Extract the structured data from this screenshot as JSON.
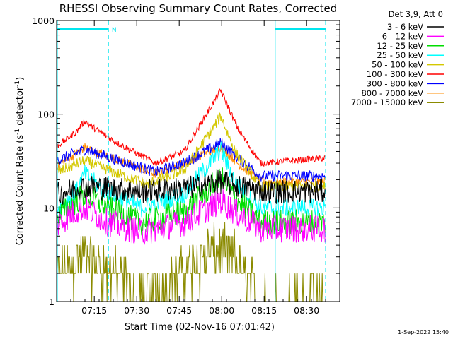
{
  "chart_data": {
    "type": "line",
    "title": "RHESSI Observing Summary Count Rates, Corrected",
    "xlabel": "Start Time (02-Nov-16 07:01:42)",
    "ylabel_main": "Corrected Count Rate (s",
    "ylabel_sup1": "-1",
    "ylabel_mid": " detector",
    "ylabel_sup2": "-1",
    "ylabel_end": ")",
    "ylog": true,
    "ylim": [
      1,
      1000
    ],
    "xlim_min": [
      0,
      100
    ],
    "x_ticks": [
      {
        "label": "07:15",
        "min": 13.3
      },
      {
        "label": "07:30",
        "min": 28.3
      },
      {
        "label": "07:45",
        "min": 43.3
      },
      {
        "label": "08:00",
        "min": 58.3
      },
      {
        "label": "08:15",
        "min": 73.3
      },
      {
        "label": "08:30",
        "min": 88.3
      }
    ],
    "y_ticks": [
      {
        "label": "1",
        "v": 1
      },
      {
        "label": "10",
        "v": 10
      },
      {
        "label": "100",
        "v": 100
      },
      {
        "label": "1000",
        "v": 1000
      }
    ],
    "legend_header": "Det 3,9, Att 0",
    "legend_placement": "top-right outside",
    "series": [
      {
        "name": "3 - 6 keV",
        "color": "#000000",
        "anchors": [
          [
            0,
            14
          ],
          [
            10,
            17
          ],
          [
            20,
            16
          ],
          [
            30,
            15
          ],
          [
            45,
            16
          ],
          [
            58,
            19
          ],
          [
            64,
            17
          ],
          [
            75,
            15
          ],
          [
            100,
            15
          ]
        ],
        "noise": 0.13
      },
      {
        "name": "6 - 12 keV",
        "color": "#ff00ff",
        "anchors": [
          [
            0,
            6.5
          ],
          [
            6,
            9
          ],
          [
            10,
            10
          ],
          [
            18,
            7
          ],
          [
            30,
            5.5
          ],
          [
            45,
            7
          ],
          [
            58,
            12
          ],
          [
            63,
            9
          ],
          [
            72,
            6
          ],
          [
            100,
            6
          ]
        ],
        "noise": 0.15
      },
      {
        "name": "12 - 25 keV",
        "color": "#00dd00",
        "anchors": [
          [
            0,
            8
          ],
          [
            10,
            14
          ],
          [
            18,
            10
          ],
          [
            30,
            7
          ],
          [
            45,
            9
          ],
          [
            58,
            21
          ],
          [
            63,
            13
          ],
          [
            72,
            7
          ],
          [
            100,
            7
          ]
        ],
        "noise": 0.14
      },
      {
        "name": "25 - 50 keV",
        "color": "#00ffff",
        "anchors": [
          [
            0,
            9.5
          ],
          [
            7,
            15
          ],
          [
            10,
            23
          ],
          [
            16,
            16
          ],
          [
            30,
            10
          ],
          [
            45,
            14
          ],
          [
            58,
            42
          ],
          [
            63,
            19
          ],
          [
            72,
            10
          ],
          [
            100,
            10
          ]
        ],
        "noise": 0.1
      },
      {
        "name": "50 - 100 keV",
        "color": "#d4c800",
        "anchors": [
          [
            0,
            24
          ],
          [
            10,
            32
          ],
          [
            20,
            24
          ],
          [
            32,
            18
          ],
          [
            45,
            25
          ],
          [
            58,
            95
          ],
          [
            63,
            40
          ],
          [
            72,
            17
          ],
          [
            100,
            17
          ]
        ],
        "noise": 0.06
      },
      {
        "name": "100 - 300 keV",
        "color": "#ff0000",
        "anchors": [
          [
            0,
            45
          ],
          [
            7,
            65
          ],
          [
            10,
            85
          ],
          [
            12,
            75
          ],
          [
            22,
            48
          ],
          [
            35,
            30
          ],
          [
            45,
            40
          ],
          [
            58,
            180
          ],
          [
            64,
            70
          ],
          [
            72,
            30
          ],
          [
            100,
            35
          ]
        ],
        "noise": 0.035
      },
      {
        "name": "300 - 800 keV",
        "color": "#0000ff",
        "anchors": [
          [
            0,
            32
          ],
          [
            10,
            42
          ],
          [
            22,
            32
          ],
          [
            35,
            24
          ],
          [
            45,
            30
          ],
          [
            58,
            50
          ],
          [
            64,
            34
          ],
          [
            72,
            22
          ],
          [
            100,
            22
          ]
        ],
        "noise": 0.06
      },
      {
        "name": "800 - 7000 keV",
        "color": "#ff8c00",
        "anchors": [
          [
            0,
            28
          ],
          [
            10,
            44
          ],
          [
            22,
            32
          ],
          [
            35,
            23
          ],
          [
            45,
            30
          ],
          [
            58,
            45
          ],
          [
            64,
            30
          ],
          [
            72,
            19
          ],
          [
            100,
            19
          ]
        ],
        "noise": 0.05
      },
      {
        "name": "7000 - 15000 keV",
        "color": "#8b8b00",
        "anchors": [
          [
            0,
            2
          ],
          [
            10,
            3
          ],
          [
            20,
            2
          ],
          [
            30,
            1
          ],
          [
            45,
            2
          ],
          [
            55,
            3.5
          ],
          [
            62,
            3
          ],
          [
            72,
            1
          ],
          [
            100,
            1
          ]
        ],
        "noise": 0.18
      }
    ],
    "annotations": {
      "night_bands_min": [
        [
          0,
          18.3
        ],
        [
          77.2,
          95.0
        ]
      ],
      "night_color": "#00e5ee",
      "saa_marker": "N"
    },
    "footer_date": "1-Sep-2022 15:40"
  }
}
